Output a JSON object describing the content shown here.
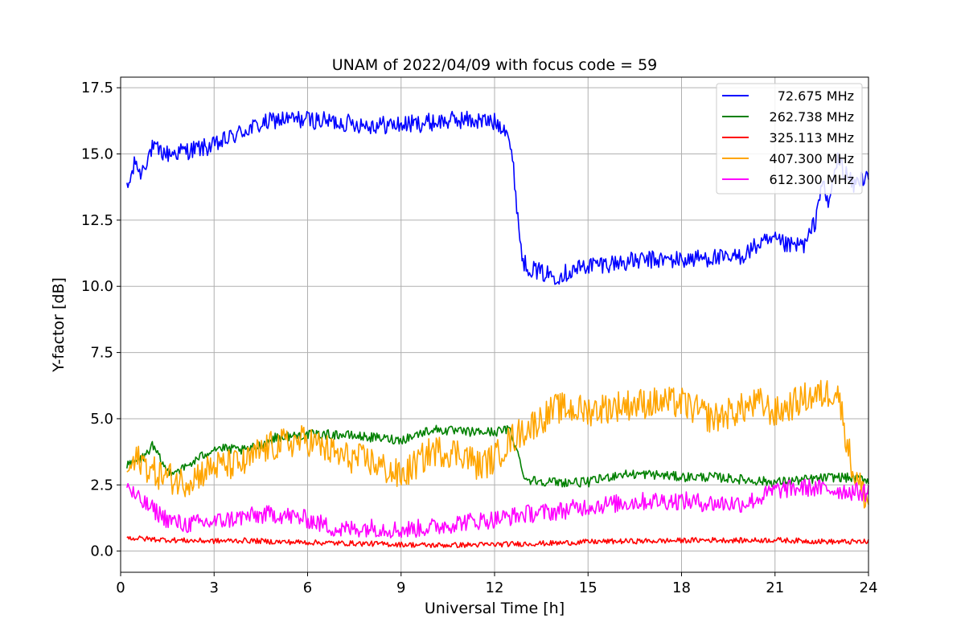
{
  "chart_data": {
    "type": "line",
    "title": "UNAM of 2022/04/09 with focus code = 59",
    "xlabel": "Universal Time [h]",
    "ylabel": "Y-factor [dB]",
    "xlim": [
      0,
      24
    ],
    "ylim": [
      -0.8,
      17.9
    ],
    "xticks": [
      0,
      3,
      6,
      9,
      12,
      15,
      18,
      21,
      24
    ],
    "yticks": [
      0.0,
      2.5,
      5.0,
      7.5,
      10.0,
      12.5,
      15.0,
      17.5
    ],
    "ytick_labels": [
      "0.0",
      "2.5",
      "5.0",
      "7.5",
      "10.0",
      "12.5",
      "15.0",
      "17.5"
    ],
    "grid": true,
    "legend_position": "top-right",
    "series": [
      {
        "name": "72.675 MHz",
        "color": "#0000ff",
        "noise": 0.35,
        "x": [
          0.2,
          0.5,
          0.6,
          1,
          1.5,
          2,
          2.5,
          3,
          3.5,
          4,
          4.5,
          5,
          6,
          7,
          8,
          9,
          10,
          11,
          12,
          12.4,
          12.6,
          12.8,
          12.9,
          13,
          13.5,
          14,
          15,
          16,
          17,
          18,
          19,
          19.5,
          20,
          20.5,
          21,
          21.5,
          22,
          22.3,
          22.5,
          22.7,
          23,
          23.5,
          24
        ],
        "y": [
          13.6,
          14.8,
          14.2,
          15.2,
          15.0,
          15.1,
          15.2,
          15.3,
          15.6,
          15.9,
          16.1,
          16.3,
          16.3,
          16.2,
          16.1,
          16.1,
          16.2,
          16.3,
          16.2,
          16.0,
          14.5,
          12.0,
          11.0,
          10.8,
          10.5,
          10.4,
          10.8,
          10.9,
          11.0,
          11.0,
          11.1,
          11.0,
          11.2,
          11.6,
          11.7,
          11.5,
          11.6,
          12.5,
          14.0,
          13.0,
          14.8,
          13.8,
          14.3
        ]
      },
      {
        "name": "262.738 MHz",
        "color": "#008000",
        "noise": 0.18,
        "x": [
          0.2,
          0.8,
          1,
          1.5,
          2,
          2.5,
          3,
          4,
          4.5,
          5,
          6,
          7,
          8,
          9,
          9.5,
          10,
          11,
          12,
          12.5,
          13,
          14,
          15,
          16,
          17,
          18,
          19,
          20,
          21,
          22,
          23,
          24
        ],
        "y": [
          3.2,
          3.6,
          4.0,
          3.0,
          3.1,
          3.5,
          3.9,
          3.8,
          4.0,
          4.3,
          4.4,
          4.4,
          4.3,
          4.2,
          4.4,
          4.6,
          4.5,
          4.5,
          4.6,
          2.7,
          2.6,
          2.6,
          2.9,
          2.9,
          2.8,
          2.8,
          2.7,
          2.6,
          2.7,
          2.8,
          2.7
        ]
      },
      {
        "name": "325.113 MHz",
        "color": "#ff0000",
        "noise": 0.1,
        "x": [
          0.2,
          1,
          2,
          3,
          4,
          5,
          6,
          7,
          8,
          9,
          10,
          11,
          12,
          13,
          14,
          15,
          16,
          17,
          18,
          19,
          20,
          21,
          22,
          23,
          24
        ],
        "y": [
          0.5,
          0.45,
          0.4,
          0.38,
          0.4,
          0.35,
          0.33,
          0.3,
          0.28,
          0.25,
          0.22,
          0.23,
          0.25,
          0.28,
          0.3,
          0.35,
          0.37,
          0.38,
          0.4,
          0.42,
          0.4,
          0.42,
          0.38,
          0.35,
          0.35
        ]
      },
      {
        "name": "407.300 MHz",
        "color": "#ffa500",
        "noise": 0.6,
        "x": [
          0.2,
          0.6,
          1,
          1.5,
          2,
          3,
          4,
          4.5,
          5,
          6,
          7,
          8,
          9,
          9.5,
          10,
          11,
          11.5,
          12,
          12.5,
          13,
          13.5,
          14,
          15,
          16,
          17,
          18,
          19,
          20,
          20.5,
          21,
          22,
          22.5,
          23,
          23.5,
          24
        ],
        "y": [
          3.0,
          3.5,
          3.0,
          2.8,
          2.6,
          3.2,
          3.3,
          3.8,
          4.0,
          4.2,
          3.6,
          3.4,
          2.8,
          3.3,
          3.8,
          3.7,
          3.2,
          3.5,
          4.2,
          4.6,
          5.0,
          5.4,
          5.3,
          5.5,
          5.6,
          5.6,
          5.0,
          5.4,
          5.6,
          5.2,
          5.8,
          5.9,
          6.1,
          3.0,
          1.8
        ]
      },
      {
        "name": "612.300 MHz",
        "color": "#ff00ff",
        "noise": 0.35,
        "x": [
          0.2,
          0.5,
          1,
          1.5,
          2,
          3,
          4,
          5,
          6,
          7,
          8,
          9,
          10,
          11,
          12,
          13,
          14,
          15,
          16,
          17,
          18,
          19,
          20,
          20.5,
          21,
          22,
          23,
          24
        ],
        "y": [
          2.5,
          2.0,
          1.6,
          1.2,
          1.0,
          1.1,
          1.3,
          1.4,
          1.2,
          0.8,
          0.9,
          0.8,
          0.9,
          1.1,
          1.2,
          1.4,
          1.5,
          1.7,
          1.8,
          1.9,
          1.9,
          1.8,
          1.8,
          2.0,
          2.3,
          2.4,
          2.3,
          2.2
        ]
      }
    ]
  }
}
